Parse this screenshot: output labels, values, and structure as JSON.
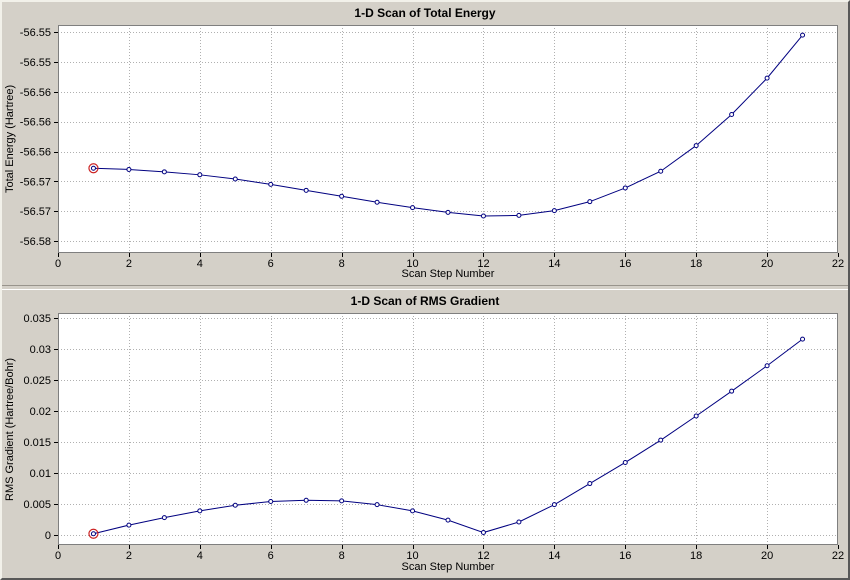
{
  "window": {
    "background": "#d4d0c8"
  },
  "chart_data": [
    {
      "type": "line",
      "title": "1-D Scan of Total Energy",
      "xlabel": "Scan Step Number",
      "ylabel": "Total Energy (Hartree)",
      "x": [
        1,
        2,
        3,
        4,
        5,
        6,
        7,
        8,
        9,
        10,
        11,
        12,
        13,
        14,
        15,
        16,
        17,
        18,
        19,
        20,
        21
      ],
      "y": [
        -56.5678,
        -56.568,
        -56.5684,
        -56.5689,
        -56.5696,
        -56.5705,
        -56.5715,
        -56.5725,
        -56.5735,
        -56.5744,
        -56.5752,
        -56.5758,
        -56.5757,
        -56.5749,
        -56.5734,
        -56.5711,
        -56.5683,
        -56.564,
        -56.5588,
        -56.5527,
        -56.5455
      ],
      "xlim": [
        0,
        22
      ],
      "ylim": [
        -56.582,
        -56.5438
      ],
      "xticks": {
        "values": [
          0,
          2,
          4,
          6,
          8,
          10,
          12,
          14,
          16,
          18,
          20,
          22
        ],
        "labels": [
          "0",
          "2",
          "4",
          "6",
          "8",
          "10",
          "12",
          "14",
          "16",
          "18",
          "20",
          "22"
        ]
      },
      "yticks": {
        "values": [
          -56.545,
          -56.55,
          -56.555,
          -56.56,
          -56.565,
          -56.57,
          -56.575,
          -56.58
        ],
        "labels": [
          "-56.55",
          "-56.55",
          "-56.56",
          "-56.56",
          "-56.56",
          "-56.57",
          "-56.57",
          "-56.58"
        ]
      },
      "grid": true,
      "grid_color": "#b0b0b0",
      "legend": "none",
      "line_color": "#000080",
      "marker": "circle",
      "marker_color": "#000080",
      "marker_fill": "#ffffff",
      "highlight": {
        "index": 0,
        "color": "#cc2222"
      }
    },
    {
      "type": "line",
      "title": "1-D Scan of RMS Gradient",
      "xlabel": "Scan Step Number",
      "ylabel": "RMS Gradient (Hartree/Bohr)",
      "x": [
        1,
        2,
        3,
        4,
        5,
        6,
        7,
        8,
        9,
        10,
        11,
        12,
        13,
        14,
        15,
        16,
        17,
        18,
        19,
        20,
        21
      ],
      "y": [
        0.0002,
        0.0016,
        0.0028,
        0.0039,
        0.0048,
        0.0054,
        0.0056,
        0.0055,
        0.0049,
        0.0039,
        0.0024,
        0.0004,
        0.0021,
        0.0049,
        0.0083,
        0.0117,
        0.0153,
        0.0192,
        0.0232,
        0.0273,
        0.0316
      ],
      "xlim": [
        0,
        22
      ],
      "ylim": [
        -0.00161,
        0.03581
      ],
      "xticks": {
        "values": [
          0,
          2,
          4,
          6,
          8,
          10,
          12,
          14,
          16,
          18,
          20,
          22
        ],
        "labels": [
          "0",
          "2",
          "4",
          "6",
          "8",
          "10",
          "12",
          "14",
          "16",
          "18",
          "20",
          "22"
        ]
      },
      "yticks": {
        "values": [
          0,
          0.005,
          0.01,
          0.015,
          0.02,
          0.025,
          0.03,
          0.035
        ],
        "labels": [
          "0",
          "0.005",
          "0.01",
          "0.015",
          "0.02",
          "0.025",
          "0.03",
          "0.035"
        ]
      },
      "grid": true,
      "grid_color": "#b0b0b0",
      "legend": "none",
      "line_color": "#000080",
      "marker": "circle",
      "marker_color": "#000080",
      "marker_fill": "#ffffff",
      "highlight": {
        "index": 0,
        "color": "#cc2222"
      }
    }
  ]
}
